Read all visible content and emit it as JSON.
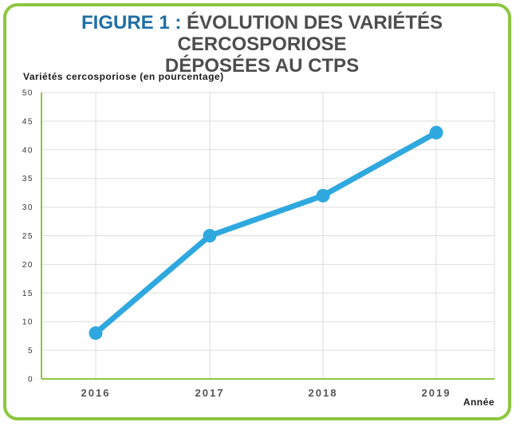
{
  "title_prefix": "FIGURE 1 :",
  "title_line1": "ÉVOLUTION DES VARIÉTÉS CERCOSPORIOSE",
  "title_line2": "DÉPOSÉES AU CTPS",
  "colors": {
    "frame": "#8dc63f",
    "series": "#2fa8df",
    "title_prefix": "#1f6fa5",
    "axis": "#8dc63f"
  },
  "chart_data": {
    "type": "line",
    "title": "FIGURE 1 : ÉVOLUTION DES VARIÉTÉS CERCOSPORIOSE DÉPOSÉES AU CTPS",
    "ylabel": "Variétés cercosporiose (en pourcentage)",
    "xlabel": "Année",
    "categories": [
      "2016",
      "2017",
      "2018",
      "2019"
    ],
    "series": [
      {
        "values": [
          8,
          25,
          32,
          43
        ]
      }
    ],
    "ylim": [
      0,
      50
    ],
    "yticks": [
      "0",
      "5",
      "10",
      "15",
      "20",
      "25",
      "30",
      "35",
      "40",
      "45",
      "50"
    ],
    "grid": true
  }
}
